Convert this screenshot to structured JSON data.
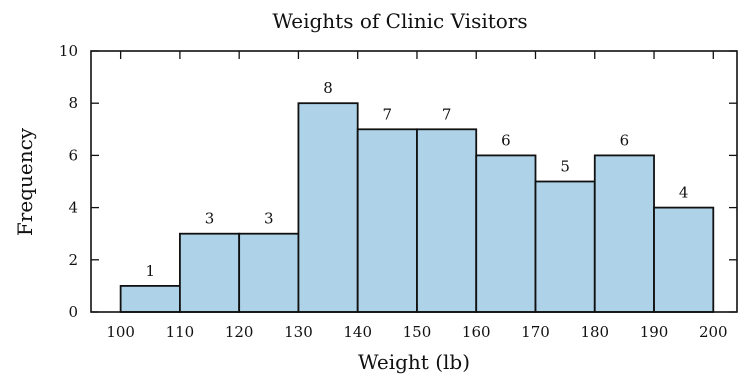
{
  "chart_data": {
    "type": "bar",
    "title": "Weights of Clinic Visitors",
    "xlabel": "Weight (lb)",
    "ylabel": "Frequency",
    "bin_edges": [
      100,
      110,
      120,
      130,
      140,
      150,
      160,
      170,
      180,
      190,
      200
    ],
    "values": [
      1,
      3,
      3,
      8,
      7,
      7,
      6,
      5,
      6,
      4
    ],
    "data_labels": [
      "1",
      "3",
      "3",
      "8",
      "7",
      "7",
      "6",
      "5",
      "6",
      "4"
    ],
    "x_ticks": [
      "100",
      "110",
      "120",
      "130",
      "140",
      "150",
      "160",
      "170",
      "180",
      "190",
      "200"
    ],
    "y_ticks": [
      "0",
      "2",
      "4",
      "6",
      "8",
      "10"
    ],
    "xlim": [
      95,
      204
    ],
    "ylim": [
      0,
      10
    ],
    "bar_color": "#aed3e8",
    "edge_color": "#111111",
    "grid": false,
    "legend": false
  }
}
